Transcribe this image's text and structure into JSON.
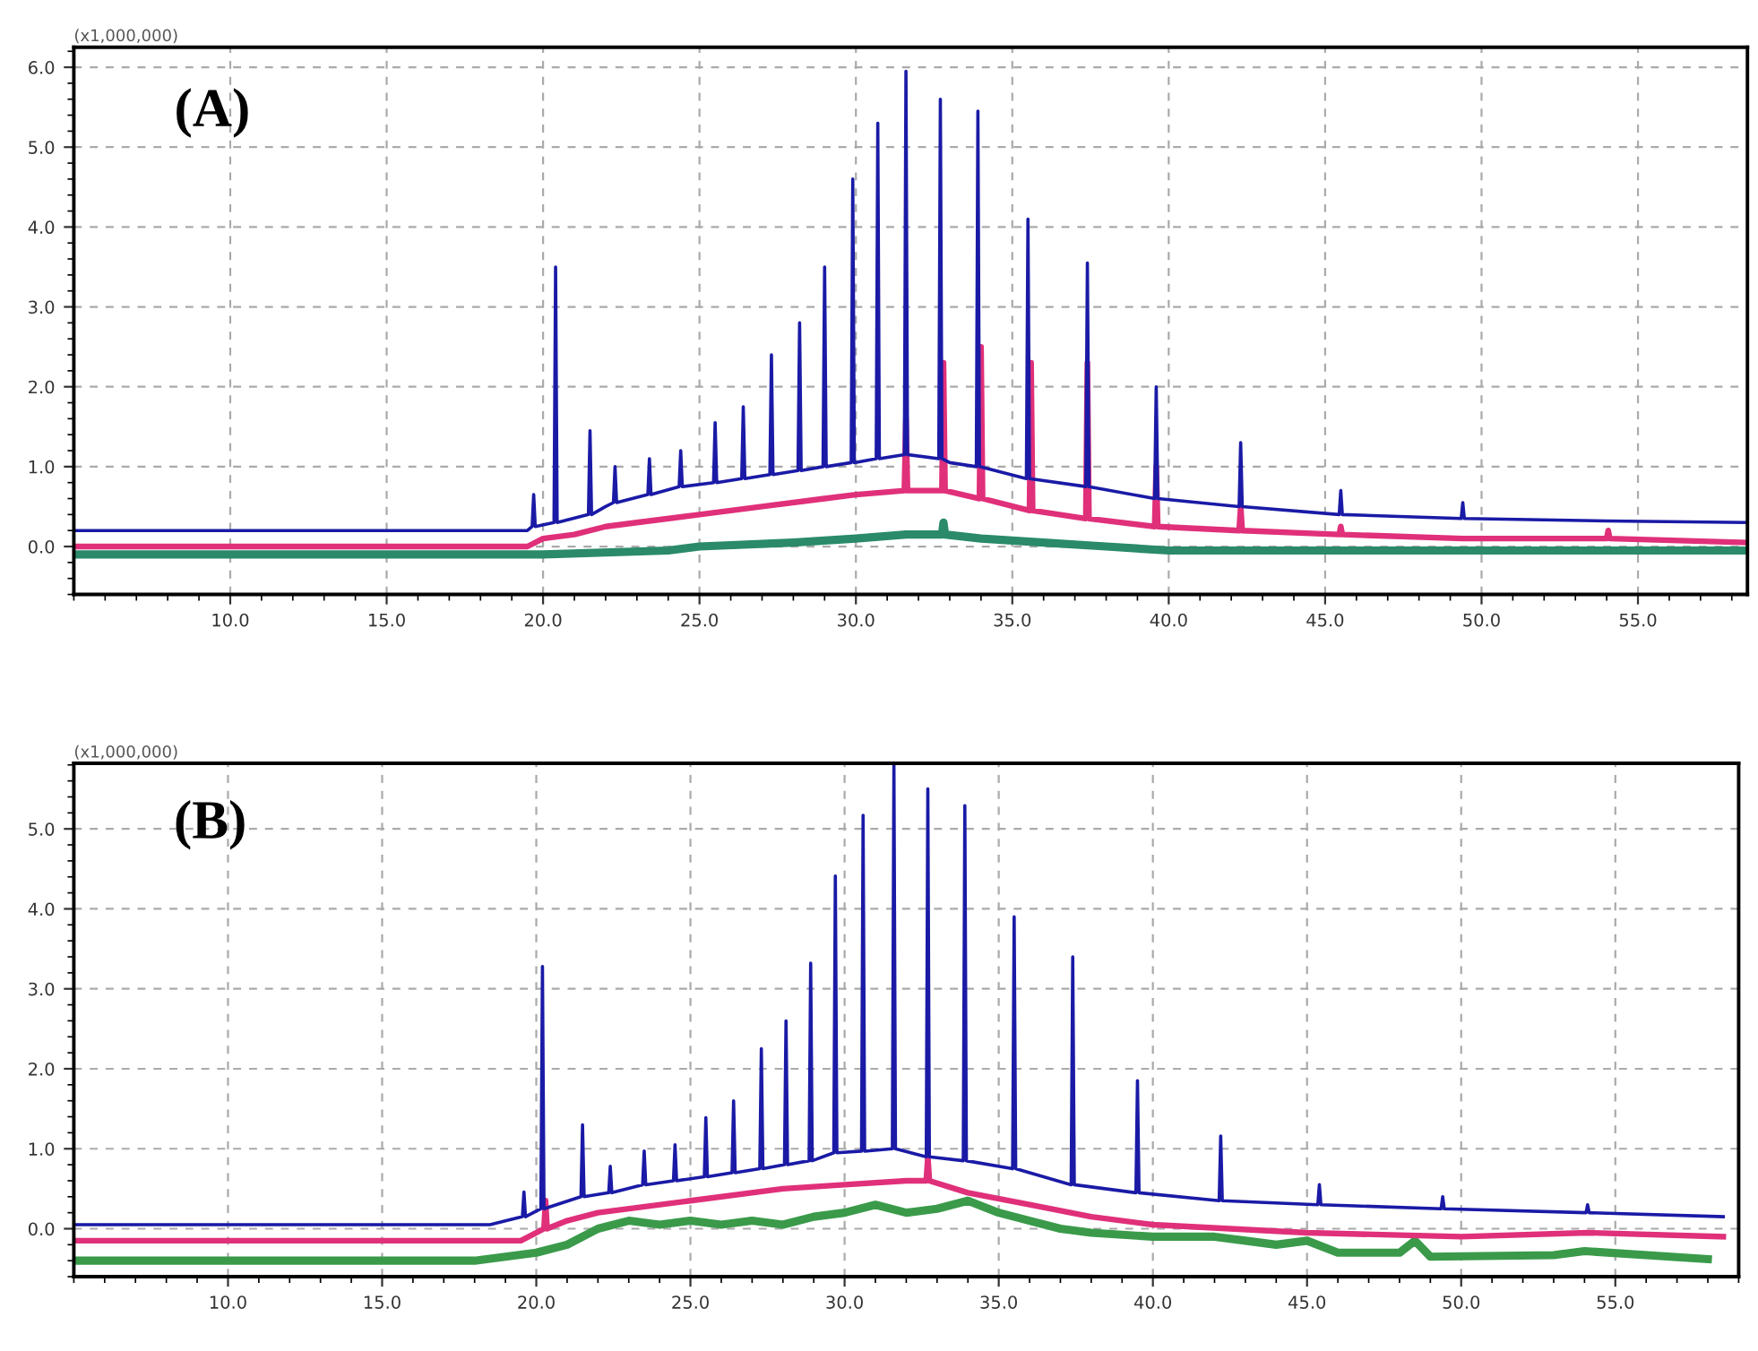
{
  "chart_data": [
    {
      "type": "line",
      "title": "(A)",
      "annotations": [
        "(x1,000,000)"
      ],
      "grid": true,
      "line_style": "solid",
      "marker": "none",
      "xlim": [
        5.0,
        58.5
      ],
      "xticks": [
        {
          "value": 10,
          "label": "10.0"
        },
        {
          "value": 15,
          "label": "15.0"
        },
        {
          "value": 20,
          "label": "20.0"
        },
        {
          "value": 25,
          "label": "25.0"
        },
        {
          "value": 30,
          "label": "30.0"
        },
        {
          "value": 35,
          "label": "35.0"
        },
        {
          "value": 40,
          "label": "40.0"
        },
        {
          "value": 45,
          "label": "45.0"
        },
        {
          "value": 50,
          "label": "50.0"
        },
        {
          "value": 55,
          "label": "55.0"
        }
      ],
      "ylim": [
        -0.6,
        6.25
      ],
      "yticks": [
        {
          "value": 0,
          "label": "0.0"
        },
        {
          "value": 1,
          "label": "1.0"
        },
        {
          "value": 2,
          "label": "2.0"
        },
        {
          "value": 3,
          "label": "3.0"
        },
        {
          "value": 4,
          "label": "4.0"
        },
        {
          "value": 5,
          "label": "5.0"
        },
        {
          "value": 6,
          "label": "6.0"
        }
      ],
      "series": [
        {
          "color": "#2a8a6a",
          "x": [
            5,
            20,
            24,
            25,
            28,
            30,
            31.6,
            32.75,
            32.8,
            32.85,
            34,
            36,
            38,
            40,
            45,
            58.5
          ],
          "values": [
            -0.1,
            -0.1,
            -0.05,
            0.0,
            0.05,
            0.1,
            0.15,
            0.15,
            0.3,
            0.15,
            0.1,
            0.05,
            0.0,
            -0.05,
            -0.05,
            -0.05
          ]
        },
        {
          "color": "#e0307a",
          "x": [
            5,
            19.5,
            20,
            21,
            22,
            23,
            25,
            27,
            29,
            30,
            31.55,
            31.6,
            31.65,
            32.75,
            32.8,
            32.85,
            33.95,
            34.0,
            34.05,
            35.55,
            35.6,
            35.65,
            37.35,
            37.4,
            37.45,
            39.55,
            39.6,
            39.65,
            42.25,
            42.3,
            42.35,
            45.45,
            45.5,
            45.55,
            49.4,
            54,
            54.05,
            54.1,
            58.5
          ],
          "values": [
            0.0,
            0.0,
            0.1,
            0.15,
            0.25,
            0.3,
            0.4,
            0.5,
            0.6,
            0.65,
            0.7,
            1.6,
            0.7,
            0.7,
            2.3,
            0.7,
            0.6,
            2.5,
            0.6,
            0.45,
            2.3,
            0.45,
            0.35,
            2.3,
            0.35,
            0.25,
            1.0,
            0.25,
            0.2,
            0.5,
            0.2,
            0.15,
            0.25,
            0.15,
            0.1,
            0.1,
            0.2,
            0.1,
            0.05
          ]
        },
        {
          "color": "#1a1aa6",
          "x": [
            5,
            19.5,
            19.65,
            19.7,
            19.75,
            20.35,
            20.4,
            20.45,
            21.45,
            21.5,
            21.55,
            22,
            22.25,
            22.3,
            22.35,
            23.35,
            23.4,
            23.45,
            24.35,
            24.4,
            24.45,
            25.45,
            25.5,
            25.55,
            26.35,
            26.4,
            26.45,
            27.25,
            27.3,
            27.35,
            28.15,
            28.2,
            28.25,
            28.95,
            29.0,
            29.05,
            29.85,
            29.9,
            29.95,
            30.65,
            30.7,
            30.75,
            31.55,
            31.6,
            31.65,
            32.65,
            32.7,
            32.75,
            33.0,
            33.85,
            33.9,
            33.95,
            35.45,
            35.5,
            35.55,
            37.35,
            37.4,
            37.45,
            39.55,
            39.6,
            39.65,
            42.25,
            42.3,
            42.35,
            45.45,
            45.5,
            45.55,
            49.35,
            49.4,
            49.45,
            54,
            58.5
          ],
          "values": [
            0.2,
            0.2,
            0.25,
            0.65,
            0.25,
            0.3,
            3.5,
            0.3,
            0.4,
            1.45,
            0.4,
            0.5,
            0.55,
            1.0,
            0.55,
            0.65,
            1.1,
            0.65,
            0.75,
            1.2,
            0.75,
            0.8,
            1.55,
            0.8,
            0.85,
            1.75,
            0.85,
            0.9,
            2.4,
            0.9,
            0.95,
            2.8,
            0.95,
            1.0,
            3.5,
            1.0,
            1.05,
            4.6,
            1.05,
            1.1,
            5.3,
            1.1,
            1.15,
            5.95,
            1.15,
            1.1,
            5.6,
            1.1,
            1.05,
            1.0,
            5.45,
            1.0,
            0.85,
            4.1,
            0.85,
            0.75,
            3.55,
            0.75,
            0.6,
            2.0,
            0.6,
            0.5,
            1.3,
            0.5,
            0.4,
            0.7,
            0.4,
            0.35,
            0.55,
            0.35,
            0.32,
            0.3
          ]
        }
      ]
    },
    {
      "type": "line",
      "title": "(B)",
      "annotations": [
        "(x1,000,000)"
      ],
      "grid": true,
      "line_style": "solid",
      "marker": "none",
      "xlim": [
        5.0,
        59.0
      ],
      "xticks": [
        {
          "value": 10,
          "label": "10.0"
        },
        {
          "value": 15,
          "label": "15.0"
        },
        {
          "value": 20,
          "label": "20.0"
        },
        {
          "value": 25,
          "label": "25.0"
        },
        {
          "value": 30,
          "label": "30.0"
        },
        {
          "value": 35,
          "label": "35.0"
        },
        {
          "value": 40,
          "label": "40.0"
        },
        {
          "value": 45,
          "label": "45.0"
        },
        {
          "value": 50,
          "label": "50.0"
        },
        {
          "value": 55,
          "label": "55.0"
        }
      ],
      "ylim": [
        -0.6,
        5.82
      ],
      "yticks": [
        {
          "value": 0,
          "label": "0.0"
        },
        {
          "value": 1,
          "label": "1.0"
        },
        {
          "value": 2,
          "label": "2.0"
        },
        {
          "value": 3,
          "label": "3.0"
        },
        {
          "value": 4,
          "label": "4.0"
        },
        {
          "value": 5,
          "label": "5.0"
        }
      ],
      "series": [
        {
          "color": "#3a9a4a",
          "x": [
            5,
            18,
            19,
            20,
            21,
            22,
            23,
            24,
            25,
            26,
            27,
            28,
            29,
            30,
            31,
            32,
            33,
            34,
            35,
            36,
            37,
            38,
            40,
            42,
            43,
            44,
            45,
            46,
            48,
            48.5,
            49,
            53,
            54,
            58
          ],
          "values": [
            -0.4,
            -0.4,
            -0.35,
            -0.3,
            -0.2,
            0.0,
            0.1,
            0.05,
            0.1,
            0.05,
            0.1,
            0.05,
            0.15,
            0.2,
            0.3,
            0.2,
            0.25,
            0.35,
            0.2,
            0.1,
            0.0,
            -0.05,
            -0.1,
            -0.1,
            -0.15,
            -0.2,
            -0.15,
            -0.3,
            -0.3,
            -0.15,
            -0.35,
            -0.33,
            -0.28,
            -0.38
          ]
        },
        {
          "color": "#e0307a",
          "x": [
            5,
            19.5,
            20.25,
            20.3,
            20.35,
            21,
            22,
            25,
            28,
            30,
            32,
            32.65,
            32.7,
            32.75,
            34,
            36,
            38,
            40,
            45,
            50,
            54.1,
            58.5
          ],
          "values": [
            -0.15,
            -0.15,
            0.0,
            0.35,
            0.0,
            0.1,
            0.2,
            0.35,
            0.5,
            0.55,
            0.6,
            0.6,
            0.9,
            0.6,
            0.45,
            0.3,
            0.15,
            0.05,
            -0.05,
            -0.1,
            -0.05,
            -0.1
          ]
        },
        {
          "color": "#1a1aa6",
          "x": [
            5,
            18.5,
            19.55,
            19.6,
            19.65,
            20.15,
            20.2,
            20.25,
            21.45,
            21.5,
            21.55,
            22.35,
            22.4,
            22.45,
            23.45,
            23.5,
            23.55,
            24.45,
            24.5,
            24.55,
            25.45,
            25.5,
            25.55,
            26.35,
            26.4,
            26.45,
            27.25,
            27.3,
            27.35,
            28.05,
            28.1,
            28.15,
            28.85,
            28.9,
            28.95,
            29.65,
            29.7,
            29.75,
            30.55,
            30.6,
            30.65,
            31.55,
            31.6,
            31.65,
            32.65,
            32.7,
            32.75,
            33.85,
            33.9,
            33.95,
            35.45,
            35.5,
            35.55,
            37.35,
            37.4,
            37.45,
            39.45,
            39.5,
            39.55,
            42.15,
            42.2,
            42.25,
            45.35,
            45.4,
            45.45,
            49.35,
            49.4,
            49.45,
            54.05,
            54.1,
            54.15,
            58.5
          ],
          "values": [
            0.05,
            0.05,
            0.15,
            0.46,
            0.15,
            0.25,
            3.28,
            0.25,
            0.4,
            1.3,
            0.4,
            0.45,
            0.78,
            0.45,
            0.55,
            0.97,
            0.55,
            0.6,
            1.05,
            0.6,
            0.65,
            1.39,
            0.65,
            0.7,
            1.6,
            0.7,
            0.75,
            2.25,
            0.75,
            0.8,
            2.6,
            0.8,
            0.85,
            3.32,
            0.85,
            0.95,
            4.41,
            0.95,
            0.97,
            5.17,
            0.97,
            1.0,
            5.8,
            1.0,
            0.9,
            5.5,
            0.9,
            0.85,
            5.29,
            0.85,
            0.75,
            3.9,
            0.75,
            0.55,
            3.4,
            0.55,
            0.45,
            1.85,
            0.45,
            0.35,
            1.16,
            0.35,
            0.3,
            0.55,
            0.3,
            0.25,
            0.4,
            0.25,
            0.2,
            0.3,
            0.2,
            0.15
          ]
        }
      ]
    }
  ]
}
